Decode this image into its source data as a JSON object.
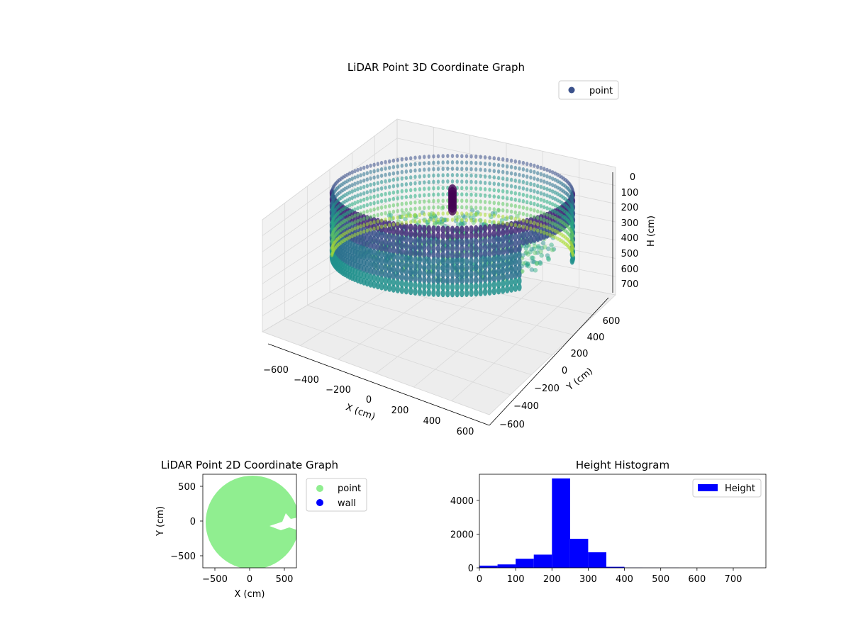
{
  "chart_data": [
    {
      "type": "scatter",
      "subtype": "3d",
      "title": "LiDAR Point 3D Coordinate Graph",
      "xlabel": "X (cm)",
      "ylabel": "Y (cm)",
      "zlabel": "H (cm)",
      "xticks": [
        "−600",
        "−400",
        "−200",
        "0",
        "200",
        "400",
        "600"
      ],
      "yticks": [
        "−600",
        "−400",
        "−200",
        "0",
        "200",
        "400",
        "600"
      ],
      "zticks": [
        "0",
        "100",
        "200",
        "300",
        "400",
        "500",
        "600",
        "700"
      ],
      "xlim": [
        -650,
        650
      ],
      "ylim": [
        -650,
        650
      ],
      "zlim": [
        750,
        0
      ],
      "legend": [
        "point"
      ],
      "legend_position": "upper-right",
      "colormap": "viridis",
      "series": [
        {
          "name": "point",
          "description_shape": "ring wall",
          "radius": 600,
          "points": "dense"
        }
      ],
      "grid": true
    },
    {
      "type": "scatter",
      "title": "LiDAR Point 2D Coordinate Graph",
      "xlabel": "X (cm)",
      "ylabel": "Y (cm)",
      "xticks": [
        "−500",
        "0",
        "500"
      ],
      "yticks": [
        "500",
        "0",
        "−500"
      ],
      "xlim": [
        -650,
        650
      ],
      "ylim": [
        -650,
        650
      ],
      "legend": [
        "point",
        "wall"
      ],
      "legend_position": "outside-right",
      "series": [
        {
          "name": "point",
          "color": "#90ee90"
        },
        {
          "name": "wall",
          "color": "#0000ff"
        }
      ]
    },
    {
      "type": "bar",
      "subtype": "histogram",
      "title": "Height Histogram",
      "xticks": [
        "0",
        "100",
        "200",
        "300",
        "400",
        "500",
        "600",
        "700"
      ],
      "yticks": [
        "0",
        "2000",
        "4000"
      ],
      "xlim": [
        0,
        790
      ],
      "ylim": [
        0,
        5550
      ],
      "legend": [
        "Height"
      ],
      "legend_position": "upper-right",
      "bin_edges": [
        0,
        50,
        100,
        150,
        200,
        250,
        300,
        350,
        400,
        450,
        500,
        550,
        600,
        650,
        700,
        750,
        790
      ],
      "values": [
        130,
        200,
        540,
        780,
        5300,
        1720,
        920,
        60,
        10,
        5,
        3,
        2,
        2,
        1,
        1,
        1
      ],
      "series": [
        {
          "name": "Height",
          "color": "#0000ff"
        }
      ]
    }
  ]
}
